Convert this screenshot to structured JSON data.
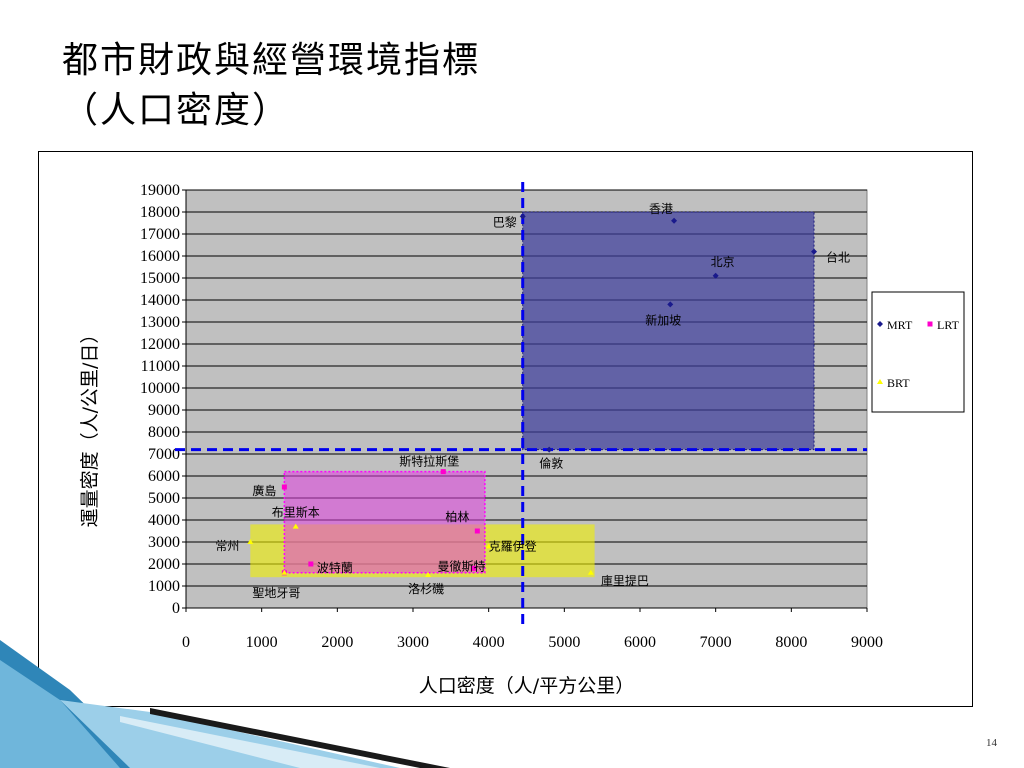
{
  "slide": {
    "title_line1": "都市財政與經營環境指標",
    "title_line2": "（人口密度）",
    "page_number": "14"
  },
  "chart_data": {
    "type": "scatter",
    "xlabel": "人口密度（人/平方公里）",
    "ylabel": "運量密度（人/公里/日）",
    "xlim": [
      0,
      9000
    ],
    "ylim": [
      0,
      19000
    ],
    "x_ticks": [
      0,
      1000,
      2000,
      3000,
      4000,
      5000,
      6000,
      7000,
      8000,
      9000
    ],
    "y_ticks": [
      0,
      1000,
      2000,
      3000,
      4000,
      5000,
      6000,
      7000,
      8000,
      9000,
      10000,
      11000,
      12000,
      13000,
      14000,
      15000,
      16000,
      17000,
      18000,
      19000
    ],
    "grid": "horizontal",
    "plot_background": "#c0c0c0",
    "legend_position": "right",
    "series": [
      {
        "name": "MRT",
        "color": "#1a1a8c",
        "marker": "diamond",
        "points": [
          {
            "label": "巴黎",
            "x": 4450,
            "y": 17800
          },
          {
            "label": "香港",
            "x": 6450,
            "y": 17600
          },
          {
            "label": "台北",
            "x": 8300,
            "y": 16200
          },
          {
            "label": "北京",
            "x": 7000,
            "y": 15100
          },
          {
            "label": "新加坡",
            "x": 6400,
            "y": 13800
          },
          {
            "label": "倫敦",
            "x": 4800,
            "y": 7200
          }
        ]
      },
      {
        "name": "LRT",
        "color": "#ff00cc",
        "marker": "square",
        "points": [
          {
            "label": "斯特拉斯堡",
            "x": 3400,
            "y": 6200
          },
          {
            "label": "廣島",
            "x": 1300,
            "y": 5500
          },
          {
            "label": "柏林",
            "x": 3850,
            "y": 3500
          },
          {
            "label": "波特蘭",
            "x": 1650,
            "y": 2000
          },
          {
            "label": "曼徹斯特",
            "x": 3800,
            "y": 1800
          },
          {
            "label": "",
            "x": 1300,
            "y": 1600
          }
        ]
      },
      {
        "name": "BRT",
        "color": "#ffff00",
        "marker": "triangle",
        "points": [
          {
            "label": "布里斯本",
            "x": 1450,
            "y": 3700
          },
          {
            "label": "常州",
            "x": 850,
            "y": 3000
          },
          {
            "label": "克羅伊登",
            "x": 4000,
            "y": 2800
          },
          {
            "label": "聖地牙哥",
            "x": 1300,
            "y": 1600
          },
          {
            "label": "洛杉磯",
            "x": 3200,
            "y": 1500
          },
          {
            "label": "庫里提巴",
            "x": 5350,
            "y": 1600
          }
        ]
      }
    ],
    "regions": [
      {
        "name": "MRT",
        "x": [
          4450,
          8300
        ],
        "y": [
          7200,
          18000
        ],
        "color": "#3b3b9b"
      },
      {
        "name": "LRT",
        "x": [
          1300,
          3950
        ],
        "y": [
          1600,
          6200
        ],
        "color": "#e040e0"
      },
      {
        "name": "BRT",
        "x": [
          850,
          5400
        ],
        "y": [
          1400,
          3800
        ],
        "color": "#f0f000"
      }
    ],
    "reference_lines": {
      "x": 4450,
      "y": 7200,
      "color": "#0000ee",
      "style": "dashed"
    }
  }
}
